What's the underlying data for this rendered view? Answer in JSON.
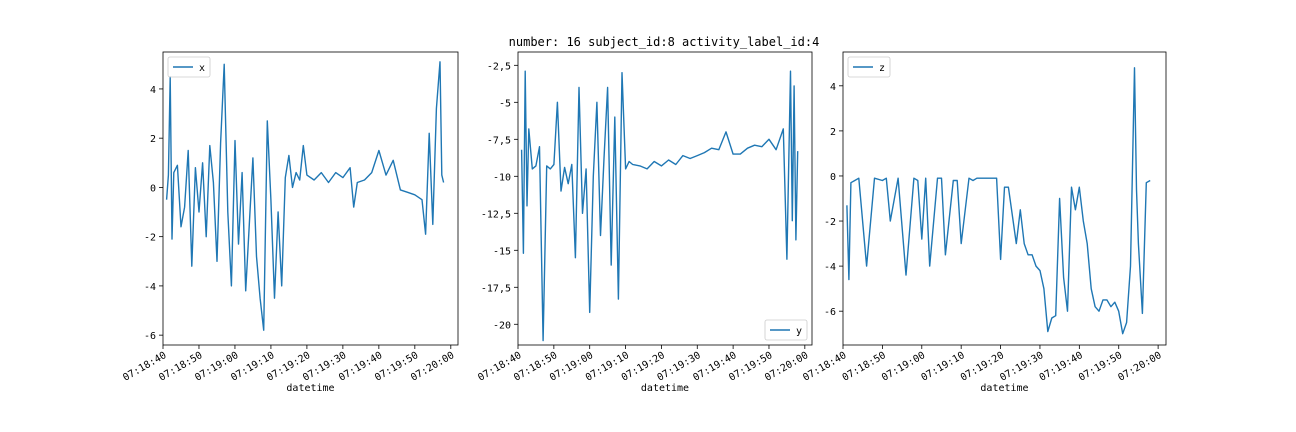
{
  "figure": {
    "title": "number: 16 subject_id:8 activity_label_id:4"
  },
  "chart_data": [
    {
      "type": "line",
      "title": "",
      "xlabel": "datetime",
      "ylabel": "",
      "legend": "upper-left",
      "color": "#1f77b4",
      "grid": false,
      "xlim": [
        "07:18:40",
        "07:20:02"
      ],
      "ylim": [
        -6.4,
        5.5
      ],
      "xticks": [
        "07:18:40",
        "07:18:50",
        "07:19:00",
        "07:19:10",
        "07:19:20",
        "07:19:30",
        "07:19:40",
        "07:19:50",
        "07:20:00"
      ],
      "yticks": [
        4,
        2,
        0,
        -2,
        -4,
        -6
      ],
      "series": [
        {
          "name": "x",
          "x": [
            "07:18:41",
            "07:18:41.5",
            "07:18:42",
            "07:18:42.5",
            "07:18:43",
            "07:18:44",
            "07:18:45",
            "07:18:46",
            "07:18:47",
            "07:18:48",
            "07:18:49",
            "07:18:50",
            "07:18:51",
            "07:18:52",
            "07:18:53",
            "07:18:54",
            "07:18:55",
            "07:18:56",
            "07:18:57",
            "07:18:58",
            "07:18:59",
            "07:19:00",
            "07:19:01",
            "07:19:02",
            "07:19:03",
            "07:19:04",
            "07:19:05",
            "07:19:06",
            "07:19:07",
            "07:19:08",
            "07:19:09",
            "07:19:10",
            "07:19:11",
            "07:19:12",
            "07:19:13",
            "07:19:14",
            "07:19:15",
            "07:19:16",
            "07:19:17",
            "07:19:18",
            "07:19:19",
            "07:19:20",
            "07:19:22",
            "07:19:24",
            "07:19:26",
            "07:19:28",
            "07:19:30",
            "07:19:32",
            "07:19:33",
            "07:19:34",
            "07:19:36",
            "07:19:38",
            "07:19:40",
            "07:19:42",
            "07:19:44",
            "07:19:46",
            "07:19:48",
            "07:19:50",
            "07:19:52",
            "07:19:53",
            "07:19:54",
            "07:19:55",
            "07:19:56",
            "07:19:57",
            "07:19:57.5",
            "07:19:58"
          ],
          "values": [
            -0.5,
            0.5,
            4.5,
            -2.1,
            0.6,
            0.9,
            -1.6,
            -0.8,
            1.5,
            -3.2,
            0.8,
            -1.0,
            1.0,
            -2.0,
            1.7,
            0.2,
            -3.0,
            1.8,
            5.0,
            -1.0,
            -4.0,
            1.9,
            -2.3,
            0.6,
            -4.2,
            -1.5,
            1.2,
            -2.8,
            -4.5,
            -5.8,
            2.7,
            -0.5,
            -4.5,
            -1.0,
            -4.0,
            0.4,
            1.3,
            0.0,
            0.6,
            0.3,
            1.7,
            0.5,
            0.3,
            0.6,
            0.2,
            0.6,
            0.4,
            0.8,
            -0.8,
            0.2,
            0.3,
            0.6,
            1.5,
            0.5,
            1.1,
            -0.1,
            -0.2,
            -0.3,
            -0.5,
            -1.9,
            2.2,
            -1.5,
            3.2,
            5.1,
            0.5,
            0.2
          ]
        }
      ]
    },
    {
      "type": "line",
      "title": "",
      "xlabel": "datetime",
      "ylabel": "",
      "legend": "lower-right",
      "color": "#1f77b4",
      "grid": false,
      "xlim": [
        "07:18:40",
        "07:20:02"
      ],
      "ylim": [
        -21.4,
        -1.6
      ],
      "xticks": [
        "07:18:40",
        "07:18:50",
        "07:19:00",
        "07:19:10",
        "07:19:20",
        "07:19:30",
        "07:19:40",
        "07:19:50",
        "07:20:00"
      ],
      "yticks": [
        -2.5,
        -5.0,
        -7.5,
        -10.0,
        -12.5,
        -15.0,
        -17.5,
        -20.0
      ],
      "series": [
        {
          "name": "y",
          "x": [
            "07:18:41",
            "07:18:41.5",
            "07:18:42",
            "07:18:42.5",
            "07:18:43",
            "07:18:44",
            "07:18:45",
            "07:18:46",
            "07:18:47",
            "07:18:48",
            "07:18:49",
            "07:18:50",
            "07:18:51",
            "07:18:52",
            "07:18:53",
            "07:18:54",
            "07:18:55",
            "07:18:56",
            "07:18:57",
            "07:18:58",
            "07:18:59",
            "07:19:00",
            "07:19:01",
            "07:19:02",
            "07:19:03",
            "07:19:04",
            "07:19:05",
            "07:19:06",
            "07:19:07",
            "07:19:08",
            "07:19:09",
            "07:19:10",
            "07:19:11",
            "07:19:12",
            "07:19:14",
            "07:19:16",
            "07:19:18",
            "07:19:20",
            "07:19:22",
            "07:19:24",
            "07:19:26",
            "07:19:28",
            "07:19:30",
            "07:19:32",
            "07:19:34",
            "07:19:36",
            "07:19:38",
            "07:19:40",
            "07:19:42",
            "07:19:44",
            "07:19:46",
            "07:19:48",
            "07:19:50",
            "07:19:52",
            "07:19:54",
            "07:19:55",
            "07:19:56",
            "07:19:56.5",
            "07:19:57",
            "07:19:57.5",
            "07:19:58"
          ],
          "values": [
            -8.2,
            -15.2,
            -2.9,
            -12.0,
            -6.8,
            -9.5,
            -9.3,
            -8.0,
            -21.1,
            -9.3,
            -9.5,
            -9.2,
            -5.0,
            -11.0,
            -9.4,
            -10.5,
            -9.2,
            -15.5,
            -4.0,
            -12.5,
            -9.5,
            -19.2,
            -10.0,
            -5.0,
            -14.0,
            -8.8,
            -4.0,
            -16.0,
            -6.0,
            -18.3,
            -3.0,
            -9.5,
            -9.0,
            -9.2,
            -9.3,
            -9.5,
            -9.0,
            -9.3,
            -8.9,
            -9.2,
            -8.6,
            -8.8,
            -8.6,
            -8.4,
            -8.1,
            -8.2,
            -7.0,
            -8.5,
            -8.5,
            -8.1,
            -7.9,
            -8.0,
            -7.5,
            -8.2,
            -6.8,
            -15.6,
            -2.9,
            -13.0,
            -3.9,
            -14.3,
            -8.3
          ]
        }
      ]
    },
    {
      "type": "line",
      "title": "",
      "xlabel": "datetime",
      "ylabel": "",
      "legend": "upper-left",
      "color": "#1f77b4",
      "grid": false,
      "xlim": [
        "07:18:40",
        "07:20:02"
      ],
      "ylim": [
        -7.5,
        5.5
      ],
      "xticks": [
        "07:18:40",
        "07:18:50",
        "07:19:00",
        "07:19:10",
        "07:19:20",
        "07:19:30",
        "07:19:40",
        "07:19:50",
        "07:20:00"
      ],
      "yticks": [
        4,
        2,
        0,
        -2,
        -4,
        -6
      ],
      "series": [
        {
          "name": "z",
          "x": [
            "07:18:41",
            "07:18:41.5",
            "07:18:42",
            "07:18:43",
            "07:18:44",
            "07:18:46",
            "07:18:48",
            "07:18:50",
            "07:18:51",
            "07:18:52",
            "07:18:54",
            "07:18:56",
            "07:18:58",
            "07:18:59",
            "07:19:00",
            "07:19:01",
            "07:19:02",
            "07:19:04",
            "07:19:05",
            "07:19:06",
            "07:19:08",
            "07:19:09",
            "07:19:10",
            "07:19:12",
            "07:19:13",
            "07:19:14",
            "07:19:16",
            "07:19:18",
            "07:19:19",
            "07:19:20",
            "07:19:21",
            "07:19:22",
            "07:19:24",
            "07:19:25",
            "07:19:26",
            "07:19:27",
            "07:19:28",
            "07:19:29",
            "07:19:30",
            "07:19:31",
            "07:19:32",
            "07:19:33",
            "07:19:34",
            "07:19:35",
            "07:19:36",
            "07:19:37",
            "07:19:38",
            "07:19:39",
            "07:19:40",
            "07:19:41",
            "07:19:42",
            "07:19:43",
            "07:19:44",
            "07:19:45",
            "07:19:46",
            "07:19:47",
            "07:19:48",
            "07:19:49",
            "07:19:50",
            "07:19:51",
            "07:19:52",
            "07:19:53",
            "07:19:54",
            "07:19:54.5",
            "07:19:55",
            "07:19:56",
            "07:19:57",
            "07:19:58"
          ],
          "values": [
            -1.3,
            -4.6,
            -0.3,
            -0.2,
            -0.1,
            -4.0,
            -0.1,
            -0.2,
            -0.1,
            -2.0,
            -0.1,
            -4.4,
            -0.1,
            -0.2,
            -2.8,
            -0.1,
            -4.0,
            -0.1,
            -0.1,
            -3.5,
            -0.2,
            -0.2,
            -3.0,
            -0.1,
            -0.2,
            -0.1,
            -0.1,
            -0.1,
            -0.1,
            -3.7,
            -0.5,
            -0.5,
            -3.0,
            -1.5,
            -3.0,
            -3.5,
            -3.5,
            -4.0,
            -4.2,
            -5.0,
            -6.9,
            -6.3,
            -6.2,
            -1.0,
            -4.5,
            -6.0,
            -0.5,
            -1.5,
            -0.5,
            -2.0,
            -3.0,
            -5.0,
            -5.8,
            -6.0,
            -5.5,
            -5.5,
            -5.8,
            -5.6,
            -6.0,
            -7.0,
            -6.5,
            -4.0,
            4.8,
            -0.6,
            -3.0,
            -6.1,
            -0.3,
            -0.2
          ]
        }
      ]
    }
  ]
}
